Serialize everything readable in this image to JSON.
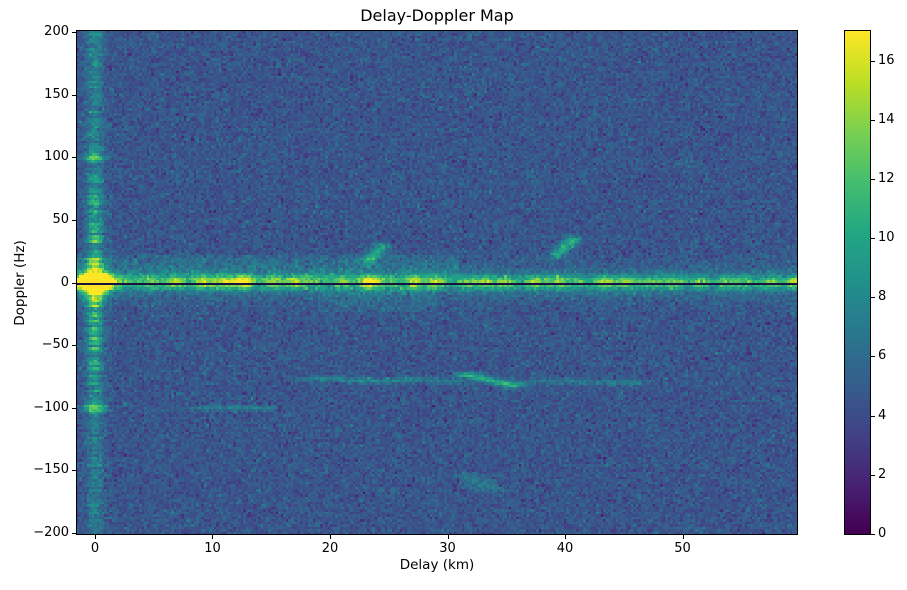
{
  "figure": {
    "title": "Delay-Doppler Map",
    "background_color": "#ffffff",
    "spine_color": "#000000",
    "text_color": "#000000"
  },
  "chart_data": {
    "type": "heatmap",
    "title": "Delay-Doppler Map",
    "xlabel": "Delay (km)",
    "ylabel": "Doppler (Hz)",
    "xlim": [
      -1.53,
      59.74
    ],
    "ylim": [
      -201,
      201
    ],
    "xticks": [
      0,
      10,
      20,
      30,
      40,
      50
    ],
    "yticks": [
      -200,
      -150,
      -100,
      -50,
      0,
      50,
      100,
      150,
      200
    ],
    "grid": false,
    "colormap": "viridis",
    "colorbar": {
      "vmin": 0,
      "vmax": 17,
      "ticks": [
        0,
        2,
        4,
        6,
        8,
        10,
        12,
        14,
        16
      ],
      "position": "right"
    },
    "viridis_stops": [
      [
        0.0,
        "#440154"
      ],
      [
        0.1,
        "#482475"
      ],
      [
        0.2,
        "#414487"
      ],
      [
        0.3,
        "#355f8d"
      ],
      [
        0.4,
        "#2a788e"
      ],
      [
        0.5,
        "#21918c"
      ],
      [
        0.6,
        "#22a884"
      ],
      [
        0.7,
        "#44bf70"
      ],
      [
        0.8,
        "#7ad151"
      ],
      [
        0.9,
        "#bddf26"
      ],
      [
        1.0,
        "#fde725"
      ]
    ],
    "noise": {
      "mean": 4.5,
      "std": 0.85,
      "seed": 42
    },
    "features": [
      {
        "name": "zero-doppler-clutter-ridge",
        "type": "ridge",
        "doppler_center": 0,
        "sigma_hz": 3.9,
        "base_amplitude": 8.3,
        "delay_fade_per_km": 0.03,
        "hotspots": [
          {
            "delay": 0.3,
            "amp": 5.0,
            "sigma": 0.8
          },
          {
            "delay": 9.6,
            "amp": 3.2,
            "sigma": 1.3
          },
          {
            "delay": 12.4,
            "amp": 4.6,
            "sigma": 1.0
          },
          {
            "delay": 16.0,
            "amp": 1.8,
            "sigma": 1.0
          },
          {
            "delay": 23.8,
            "amp": 4.4,
            "sigma": 0.9
          },
          {
            "delay": 27.8,
            "amp": 2.8,
            "sigma": 0.8
          },
          {
            "delay": 33.0,
            "amp": 2.2,
            "sigma": 1.0
          },
          {
            "delay": 38.5,
            "amp": 1.8,
            "sigma": 1.2
          },
          {
            "delay": 44.0,
            "amp": 2.4,
            "sigma": 1.0
          },
          {
            "delay": 47.5,
            "amp": 1.8,
            "sigma": 0.8
          },
          {
            "delay": 53.0,
            "amp": 1.8,
            "sigma": 1.0
          },
          {
            "delay": 58.8,
            "amp": 3.4,
            "sigma": 0.9
          }
        ]
      },
      {
        "name": "clutter-skirt",
        "type": "skirt",
        "doppler_center": 0,
        "sigma_hz": 9.5,
        "amplitude": 2.0
      },
      {
        "name": "zero-doppler-dark-line",
        "type": "notch",
        "doppler": -0.5,
        "half_width_hz": 1.1,
        "color": "#0c0c30"
      },
      {
        "name": "direct-path-peak",
        "type": "blob",
        "delay": 0,
        "doppler": 0,
        "amplitude": 17,
        "sigma_delay_km": 0.9,
        "sigma_doppler_hz": 6.0
      },
      {
        "name": "zero-delay-sidelobe-streak",
        "type": "vstreak",
        "delay": 0,
        "sigma_delay_km": 0.5,
        "amplitude": 2.4,
        "doppler_boost": 1.8,
        "boost_sigma_hz": 55
      },
      {
        "name": "ambiguity-spur-plus-100hz",
        "type": "blob",
        "delay": 0,
        "doppler": 100,
        "amplitude": 5.5,
        "sigma_delay_km": 0.7,
        "sigma_doppler_hz": 2.2
      },
      {
        "name": "ambiguity-spur-minus-100hz",
        "type": "blob",
        "delay": 0,
        "doppler": -100,
        "amplitude": 6.5,
        "sigma_delay_km": 0.7,
        "sigma_doppler_hz": 2.2
      },
      {
        "name": "minus-100hz-range-line",
        "type": "segment",
        "from": [
          9.8,
          -100.0
        ],
        "to": [
          13.8,
          -100.3
        ],
        "amplitude": 2.8,
        "sigma_along_km": 1.2,
        "sigma_perp_hz": 1.5
      },
      {
        "name": "target-echo-1",
        "type": "segment",
        "from": [
          23.3,
          18
        ],
        "to": [
          24.4,
          28
        ],
        "amplitude": 5.5,
        "sigma_along_km": 0.5,
        "sigma_perp_hz": 2.4
      },
      {
        "name": "target-echo-2",
        "type": "segment",
        "from": [
          39.4,
          23
        ],
        "to": [
          40.7,
          34
        ],
        "amplitude": 6.0,
        "sigma_along_km": 0.5,
        "sigma_perp_hz": 2.4
      },
      {
        "name": "minus-78hz-streak-a",
        "type": "segment",
        "from": [
          19.5,
          -77.0
        ],
        "to": [
          24.5,
          -79.0
        ],
        "amplitude": 3.0,
        "sigma_along_km": 1.3,
        "sigma_perp_hz": 1.8
      },
      {
        "name": "minus-78hz-streak-b",
        "type": "segment",
        "from": [
          27.0,
          -77.5
        ],
        "to": [
          30.0,
          -79.0
        ],
        "amplitude": 2.8,
        "sigma_along_km": 1.0,
        "sigma_perp_hz": 1.8
      },
      {
        "name": "minus-78hz-streak-c",
        "type": "segment",
        "from": [
          31.8,
          -74.5
        ],
        "to": [
          35.6,
          -82.0
        ],
        "amplitude": 6.2,
        "sigma_along_km": 0.8,
        "sigma_perp_hz": 2.0
      },
      {
        "name": "minus-78hz-streak-d",
        "type": "segment",
        "from": [
          38.5,
          -78.5
        ],
        "to": [
          45.5,
          -80.0
        ],
        "amplitude": 2.4,
        "sigma_along_km": 1.5,
        "sigma_perp_hz": 1.8
      },
      {
        "name": "minus-160hz-streak",
        "type": "segment",
        "from": [
          31.8,
          -155.0
        ],
        "to": [
          33.6,
          -164.0
        ],
        "amplitude": 2.8,
        "sigma_along_km": 0.7,
        "sigma_perp_hz": 2.0
      },
      {
        "name": "near-zero-haze-above",
        "type": "haze",
        "delay_range": [
          -1.5,
          31
        ],
        "doppler_range": [
          1,
          22
        ],
        "amplitude": 1.4
      },
      {
        "name": "near-zero-haze-below",
        "type": "haze",
        "delay_range": [
          19,
          29
        ],
        "doppler_range": [
          -24,
          -4
        ],
        "amplitude": 1.0
      }
    ]
  }
}
